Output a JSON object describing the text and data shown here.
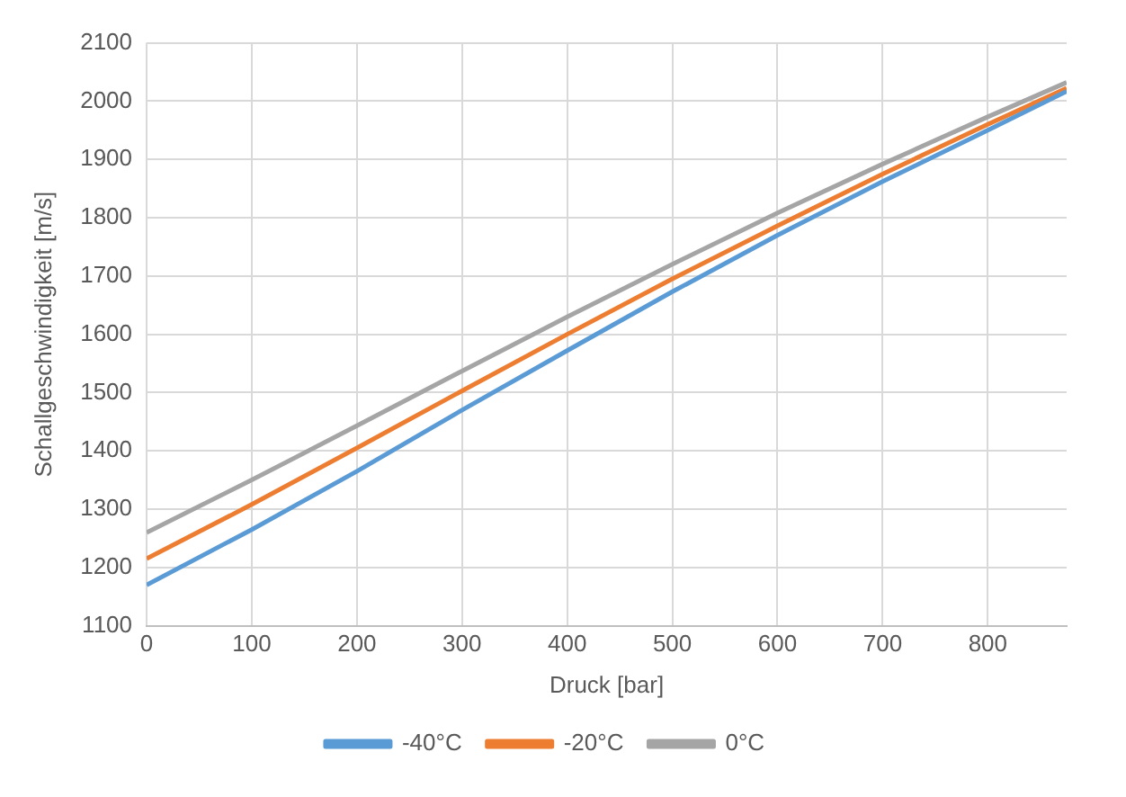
{
  "chart_data": {
    "type": "line",
    "xlabel": "Druck [bar]",
    "ylabel": "Schallgeschwindigkeit [m/s]",
    "x": [
      0,
      100,
      200,
      300,
      400,
      500,
      600,
      700,
      800,
      875
    ],
    "series": [
      {
        "name": "-40°C",
        "color": "#5b9bd5",
        "values": [
          1170,
          1265,
          1365,
          1470,
          1572,
          1673,
          1770,
          1862,
          1950,
          2017
        ]
      },
      {
        "name": "-20°C",
        "color": "#ed7d31",
        "values": [
          1215,
          1308,
          1405,
          1503,
          1600,
          1695,
          1786,
          1875,
          1960,
          2022
        ]
      },
      {
        "name": "0°C",
        "color": "#a5a5a5",
        "values": [
          1260,
          1350,
          1443,
          1537,
          1630,
          1720,
          1808,
          1892,
          1973,
          2032
        ]
      }
    ],
    "xlim": [
      0,
      875
    ],
    "xticks": [
      0,
      100,
      200,
      300,
      400,
      500,
      600,
      700,
      800
    ],
    "ylim": [
      1100,
      2100
    ],
    "yticks": [
      1100,
      1200,
      1300,
      1400,
      1500,
      1600,
      1700,
      1800,
      1900,
      2000,
      2100
    ],
    "grid": true,
    "legend": "bottom",
    "marker": "none",
    "line_style": "solid"
  }
}
